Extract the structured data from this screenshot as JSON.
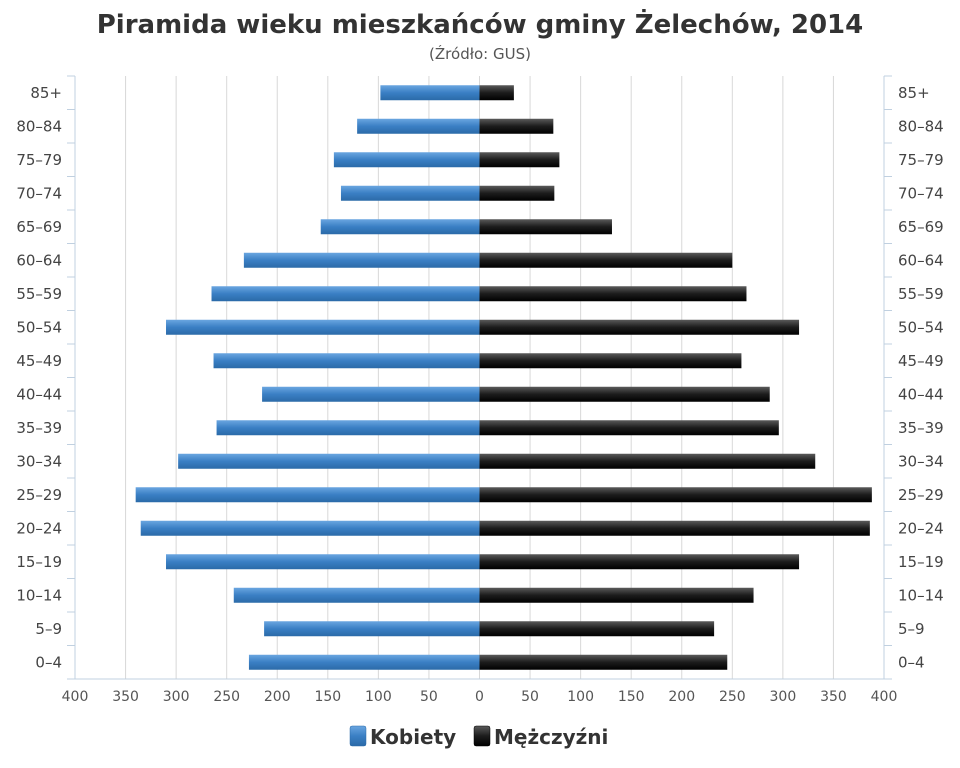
{
  "chart_data": {
    "type": "bar",
    "orientation": "horizontal",
    "variant": "population-pyramid",
    "title": "Piramida wieku mieszkańców gminy Żelechów, 2014",
    "subtitle": "(Źródło: GUS)",
    "categories": [
      "0–4",
      "5–9",
      "10–14",
      "15–19",
      "20–24",
      "25–29",
      "30–34",
      "35–39",
      "40–44",
      "45–49",
      "50–54",
      "55–59",
      "60–64",
      "65–69",
      "70–74",
      "75–79",
      "80–84",
      "85+"
    ],
    "series": [
      {
        "name": "Kobiety",
        "side": "left",
        "color": "#3a7fc4",
        "values": [
          228,
          213,
          243,
          310,
          335,
          340,
          298,
          260,
          215,
          263,
          310,
          265,
          233,
          157,
          137,
          144,
          121,
          98
        ]
      },
      {
        "name": "Mężczyźni",
        "side": "right",
        "color": "#1a1a1a",
        "values": [
          245,
          232,
          271,
          316,
          386,
          388,
          332,
          296,
          287,
          259,
          316,
          264,
          250,
          131,
          74,
          79,
          73,
          34
        ]
      }
    ],
    "xlim": [
      -400,
      400
    ],
    "xticks": [
      -400,
      -350,
      -300,
      -250,
      -200,
      -150,
      -100,
      -50,
      0,
      50,
      100,
      150,
      200,
      250,
      300,
      350,
      400
    ],
    "xtick_labels": [
      "400",
      "350",
      "300",
      "250",
      "200",
      "150",
      "100",
      "50",
      "0",
      "50",
      "100",
      "150",
      "200",
      "250",
      "300",
      "350",
      "400"
    ],
    "grid": true,
    "legend_position": "bottom"
  }
}
